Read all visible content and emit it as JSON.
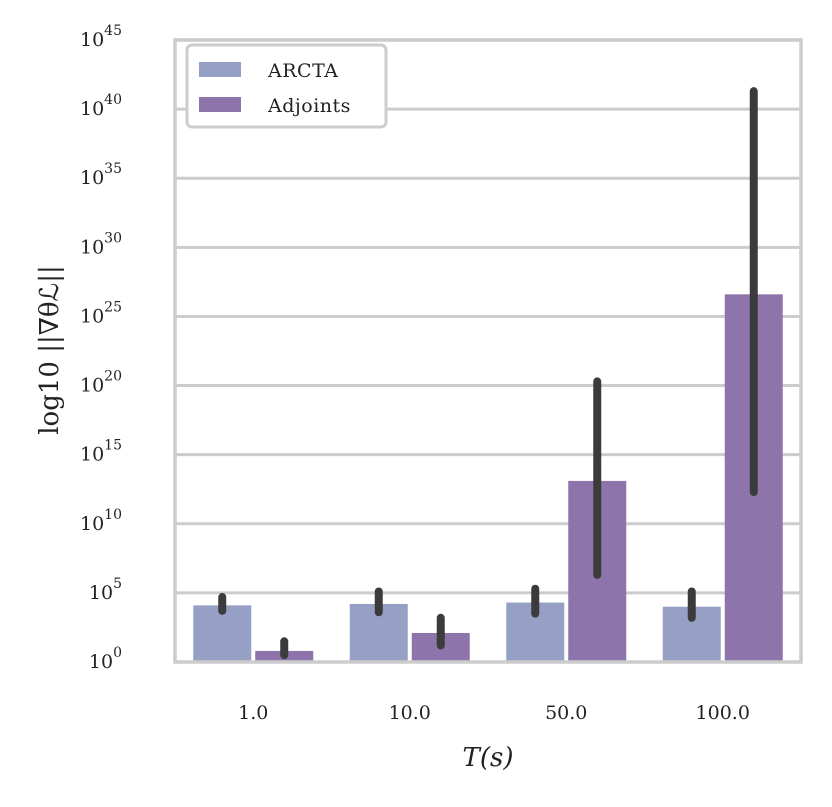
{
  "chart_data": {
    "type": "bar",
    "title": "",
    "xlabel": "T(s)",
    "ylabel": "log10 ||∇θℒ||",
    "yscale": "log",
    "y_exponent_range": [
      0,
      45
    ],
    "y_ticks": [
      {
        "base": "10",
        "exp": "0"
      },
      {
        "base": "10",
        "exp": "5"
      },
      {
        "base": "10",
        "exp": "10"
      },
      {
        "base": "10",
        "exp": "15"
      },
      {
        "base": "10",
        "exp": "20"
      },
      {
        "base": "10",
        "exp": "25"
      },
      {
        "base": "10",
        "exp": "30"
      },
      {
        "base": "10",
        "exp": "35"
      },
      {
        "base": "10",
        "exp": "40"
      },
      {
        "base": "10",
        "exp": "45"
      }
    ],
    "categories": [
      "1.0",
      "10.0",
      "50.0",
      "100.0"
    ],
    "series": [
      {
        "name": "ARCTA",
        "color": "#96a0c4",
        "log10_values": [
          4.1,
          4.2,
          4.3,
          4.0
        ],
        "log10_error_low": [
          3.7,
          3.6,
          3.5,
          3.2
        ],
        "log10_error_high": [
          4.7,
          5.1,
          5.3,
          5.1
        ]
      },
      {
        "name": "Adjoints",
        "color": "#8d74ab",
        "log10_values": [
          0.8,
          2.1,
          13.1,
          26.6
        ],
        "log10_error_low": [
          0.5,
          1.2,
          6.3,
          12.3
        ],
        "log10_error_high": [
          1.5,
          3.2,
          20.3,
          41.3
        ]
      }
    ],
    "legend": {
      "position": "top-left",
      "entries": [
        "ARCTA",
        "Adjoints"
      ]
    },
    "grid": true,
    "errorbar_color": "#3b3b3b",
    "spine_color": "#cccccc"
  }
}
